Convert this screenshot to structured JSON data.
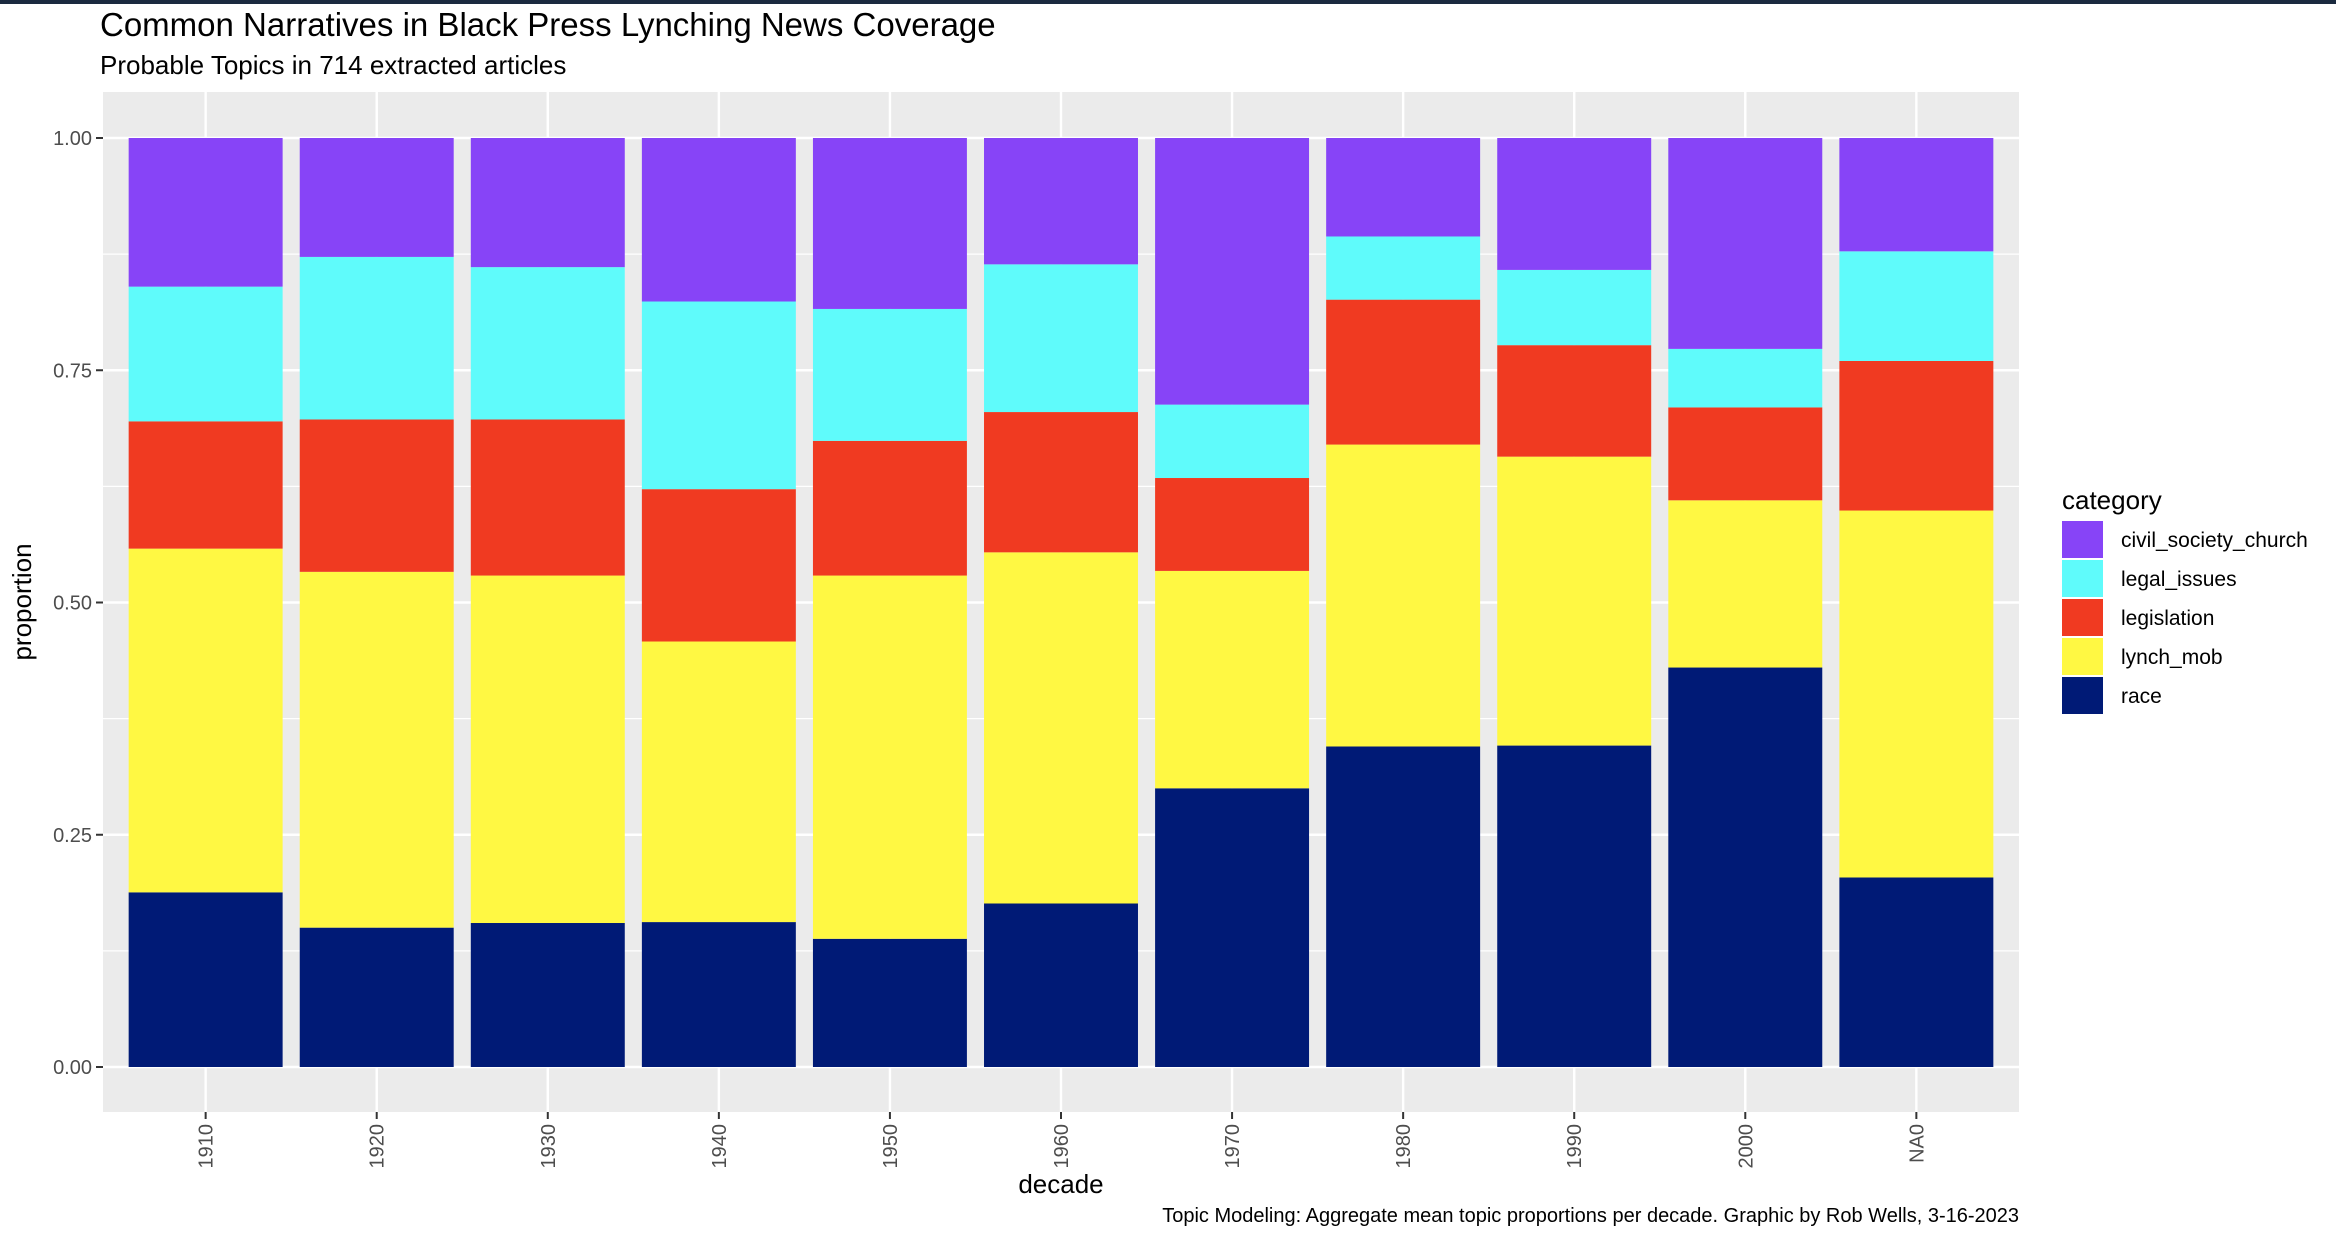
{
  "chart_data": {
    "type": "bar",
    "stacked": true,
    "normalized": true,
    "title": "Common Narratives in Black Press Lynching News Coverage",
    "subtitle": "Probable Topics in 714 extracted articles",
    "caption": "Topic Modeling: Aggregate mean topic proportions per decade. Graphic by Rob Wells, 3-16-2023",
    "xlabel": "decade",
    "ylabel": "proportion",
    "ylim": [
      0,
      1
    ],
    "yticks": [
      0,
      0.25,
      0.5,
      0.75,
      1
    ],
    "ytick_labels": [
      "0.00",
      "0.25",
      "0.50",
      "0.75",
      "1.00"
    ],
    "categories": [
      "1910",
      "1920",
      "1930",
      "1940",
      "1950",
      "1960",
      "1970",
      "1980",
      "1990",
      "2000",
      "NA0"
    ],
    "legend_title": "category",
    "legend_position": "right",
    "grid": true,
    "series": [
      {
        "name": "race",
        "color": "#001a76",
        "values": [
          0.188,
          0.15,
          0.155,
          0.156,
          0.138,
          0.176,
          0.3,
          0.345,
          0.346,
          0.43,
          0.204
        ]
      },
      {
        "name": "lynch_mob",
        "color": "#fff843",
        "values": [
          0.37,
          0.383,
          0.374,
          0.302,
          0.391,
          0.378,
          0.234,
          0.325,
          0.311,
          0.18,
          0.395
        ]
      },
      {
        "name": "legislation",
        "color": "#f03a21",
        "values": [
          0.137,
          0.164,
          0.168,
          0.164,
          0.145,
          0.151,
          0.1,
          0.156,
          0.12,
          0.1,
          0.161
        ]
      },
      {
        "name": "legal_issues",
        "color": "#5ffbfb",
        "values": [
          0.145,
          0.175,
          0.164,
          0.202,
          0.142,
          0.159,
          0.079,
          0.068,
          0.081,
          0.063,
          0.118
        ]
      },
      {
        "name": "civil_society_church",
        "color": "#8744f7",
        "values": [
          0.16,
          0.128,
          0.139,
          0.176,
          0.184,
          0.136,
          0.287,
          0.106,
          0.142,
          0.227,
          0.122
        ]
      }
    ],
    "legend_order": [
      "civil_society_church",
      "legal_issues",
      "legislation",
      "lynch_mob",
      "race"
    ]
  }
}
